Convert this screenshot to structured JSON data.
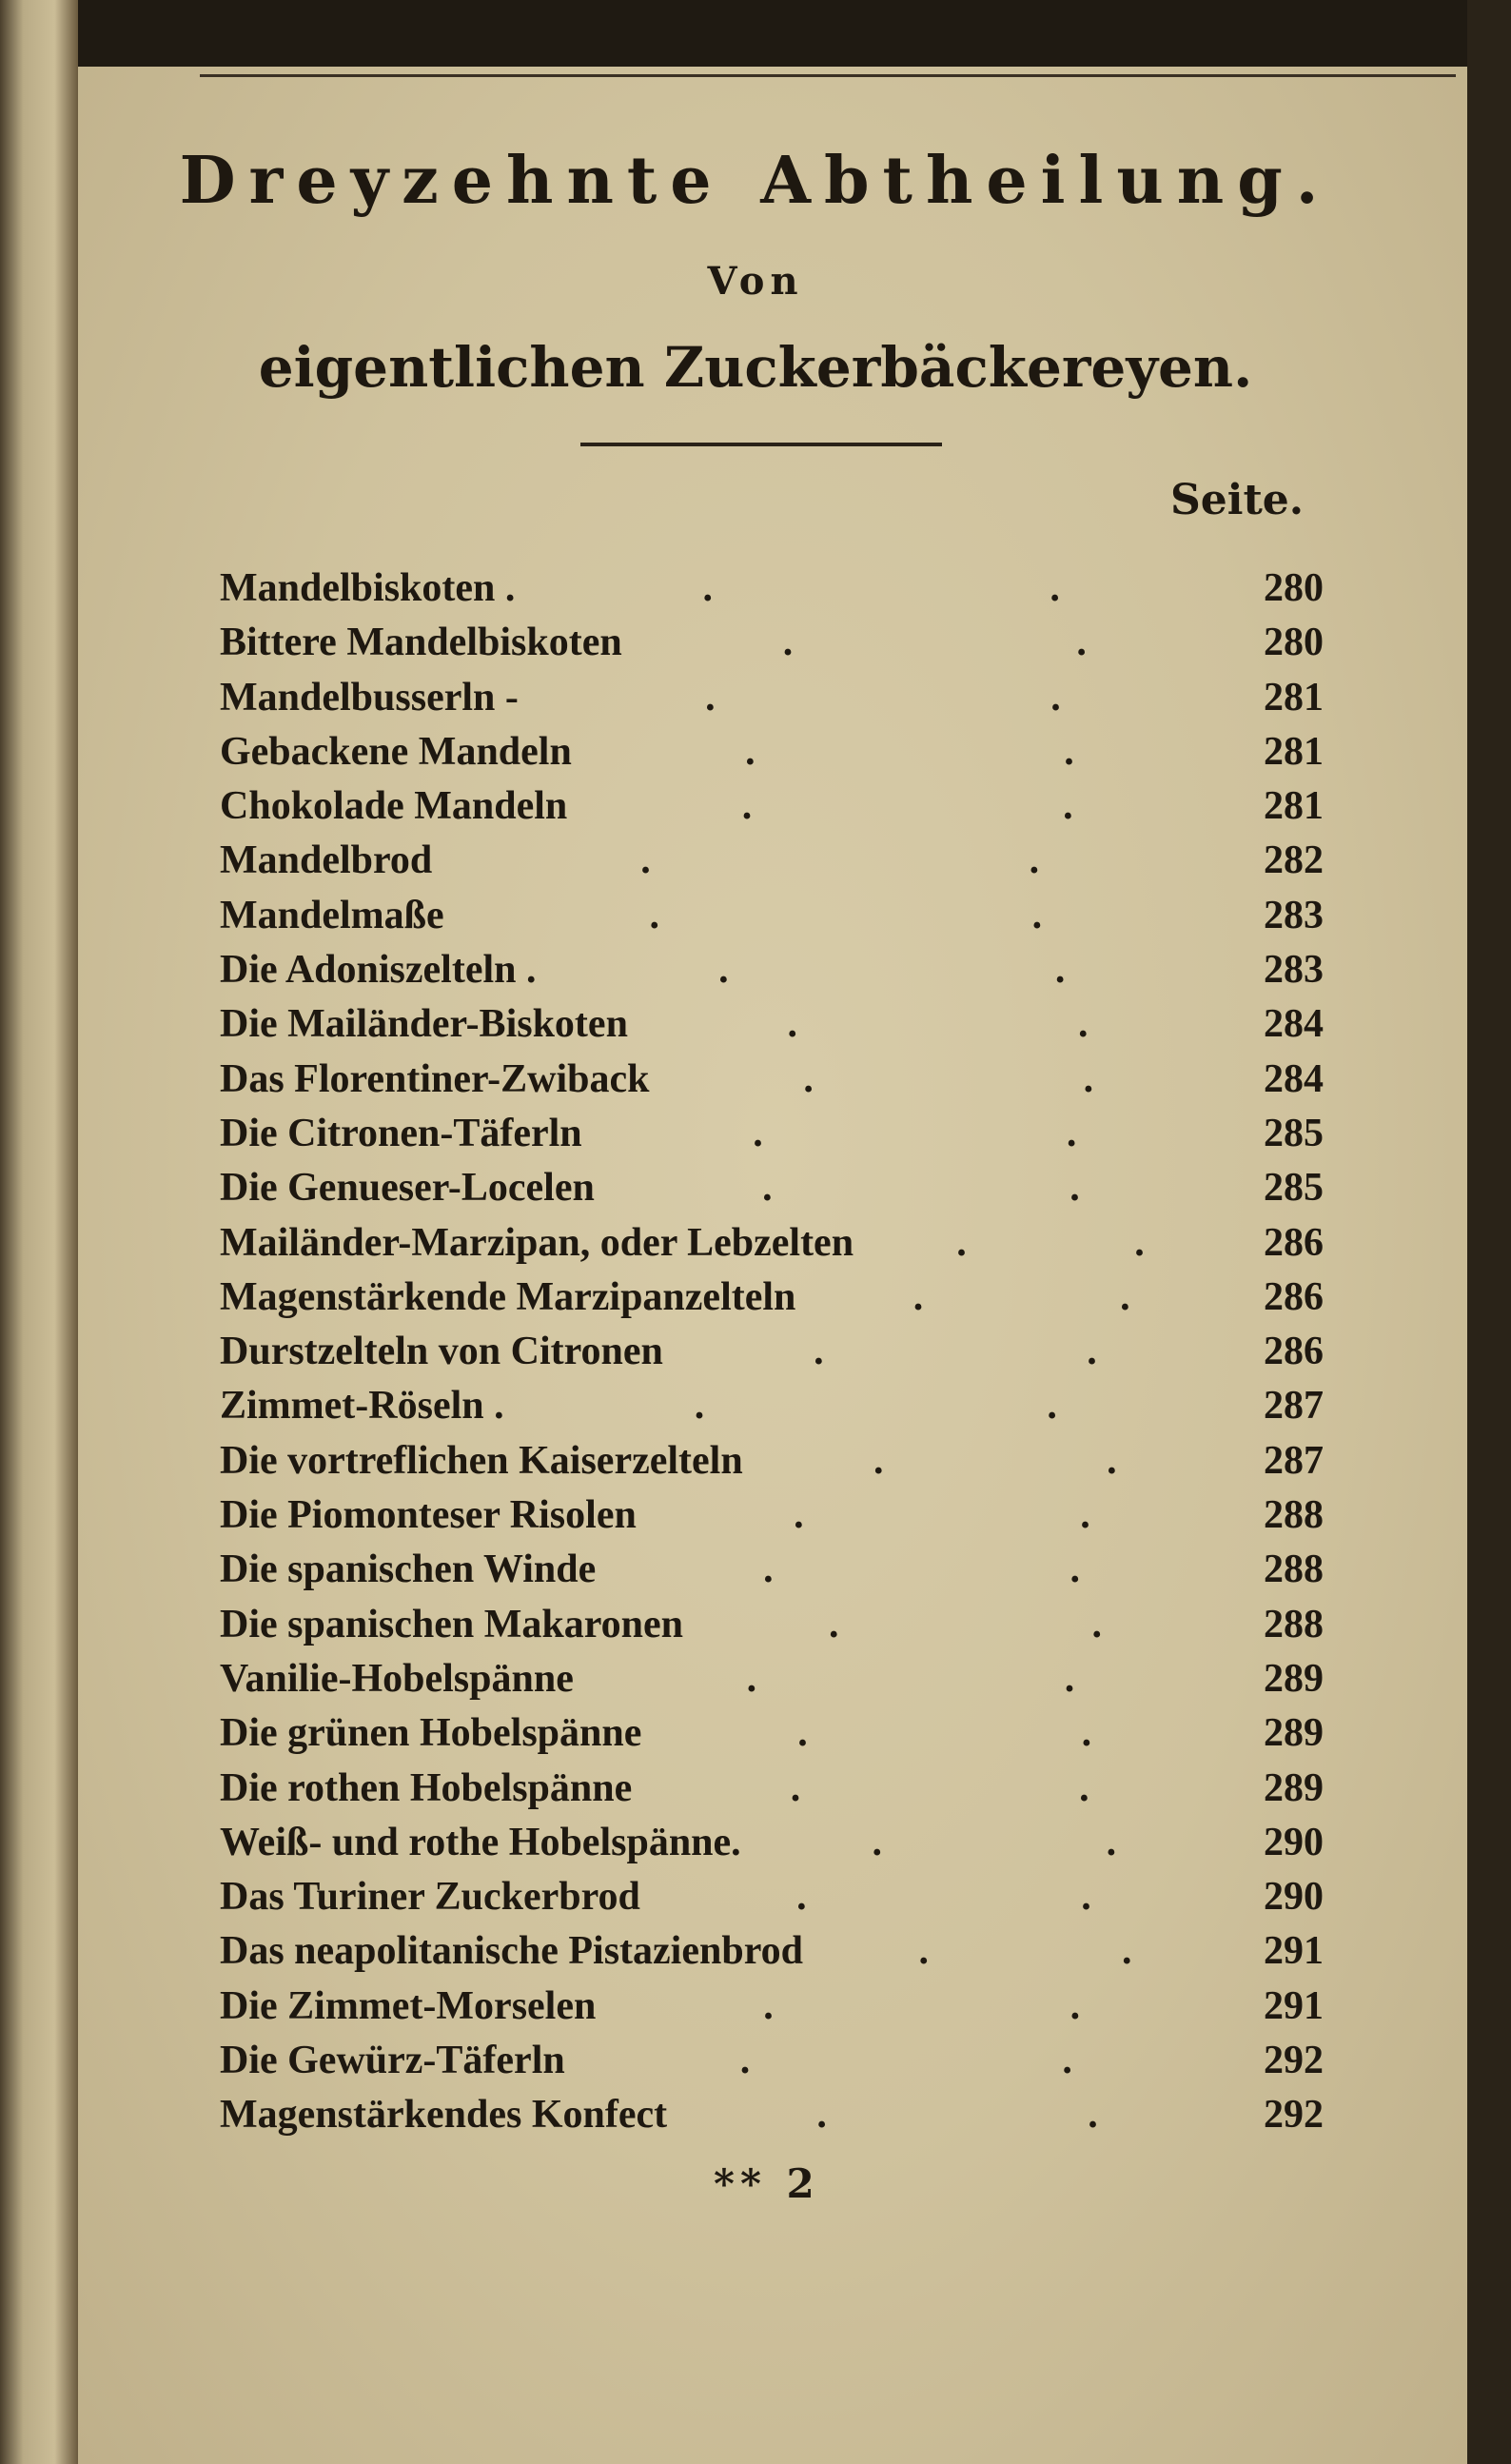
{
  "header": {
    "title": "Dreyzehnte Abtheilung.",
    "von": "Von",
    "subtitle": "eigentlichen Zuckerbäckereyen.",
    "column_label": "Seite."
  },
  "entries": [
    {
      "name": "Mandelbiskoten .",
      "page": "280"
    },
    {
      "name": "Bittere Mandelbiskoten",
      "page": "280"
    },
    {
      "name": "Mandelbusserln -",
      "page": "281"
    },
    {
      "name": "Gebackene Mandeln",
      "page": "281"
    },
    {
      "name": "Chokolade Mandeln",
      "page": "281"
    },
    {
      "name": "Mandelbrod",
      "page": "282"
    },
    {
      "name": "Mandelmaße",
      "page": "283"
    },
    {
      "name": "Die Adoniszelteln .",
      "page": "283"
    },
    {
      "name": "Die Mailänder-Biskoten",
      "page": "284"
    },
    {
      "name": "Das Florentiner-Zwiback",
      "page": "284"
    },
    {
      "name": "Die Citronen-Täferln",
      "page": "285"
    },
    {
      "name": "Die Genueser-Locelen",
      "page": "285"
    },
    {
      "name": "Mailänder-Marzipan, oder Lebzelten",
      "page": "286"
    },
    {
      "name": "Magenstärkende Marzipanzelteln",
      "page": "286"
    },
    {
      "name": "Durstzelteln von Citronen",
      "page": "286"
    },
    {
      "name": "Zimmet-Röseln .",
      "page": "287"
    },
    {
      "name": "Die vortreflichen Kaiserzelteln",
      "page": "287"
    },
    {
      "name": "Die Piomonteser Risolen",
      "page": "288"
    },
    {
      "name": "Die spanischen Winde",
      "page": "288"
    },
    {
      "name": "Die spanischen Makaronen",
      "page": "288"
    },
    {
      "name": "Vanilie-Hobelspänne",
      "page": "289"
    },
    {
      "name": "Die grünen Hobelspänne",
      "page": "289"
    },
    {
      "name": "Die rothen Hobelspänne",
      "page": "289"
    },
    {
      "name": "Weiß- und rothe Hobelspänne.",
      "page": "290"
    },
    {
      "name": "Das Turiner Zuckerbrod",
      "page": "290"
    },
    {
      "name": "Das neapolitanische Pistazienbrod",
      "page": "291"
    },
    {
      "name": "Die Zimmet-Morselen",
      "page": "291"
    },
    {
      "name": "Die Gewürz-Täferln",
      "page": "292"
    },
    {
      "name": "Magenstärkendes Konfect",
      "page": "292"
    }
  ],
  "footer": {
    "signature": "** 2"
  }
}
